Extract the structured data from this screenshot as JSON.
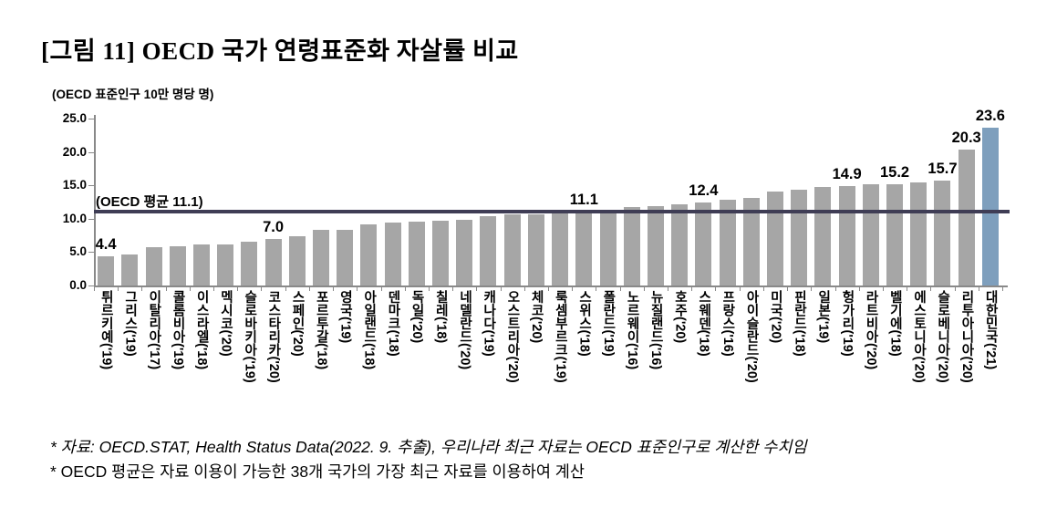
{
  "page": {
    "background": "#ffffff"
  },
  "chart_data": {
    "type": "bar",
    "title": "[그림 11] OECD 국가 연령표준화 자살률 비교",
    "unit_label": "(OECD 표준인구 10만 명당 명)",
    "xlabel": "",
    "ylabel": "",
    "ylim": [
      0,
      25
    ],
    "ytick_labels": [
      "0.0",
      "5.0",
      "10.0",
      "15.0",
      "20.0",
      "25.0"
    ],
    "yticks": [
      0,
      5,
      10,
      15,
      20,
      25
    ],
    "grid": false,
    "legend": "none",
    "bar_color": "#a6a6a6",
    "highlight_color": "#7e9fbd",
    "highlight_category": "대한민국('21)",
    "average_line": {
      "value": 11.1,
      "label": "(OECD 평균 11.1)",
      "color": "#3f3d55"
    },
    "categories": [
      "튀르키예('19)",
      "그리스('19)",
      "이탈리아('17)",
      "콜롬비아('19)",
      "이스라엘('18)",
      "멕시코('20)",
      "슬로바키아('19)",
      "코스타리카('20)",
      "스페인('20)",
      "포르투갈('18)",
      "영국('19)",
      "아일랜드('18)",
      "덴마크('18)",
      "독일('20)",
      "칠레('18)",
      "네델란드('20)",
      "캐나다('19)",
      "오스트리아('20)",
      "체코('20)",
      "룩셈부르크('19)",
      "스위스('18)",
      "폴란드('19)",
      "노르웨이('16)",
      "뉴질랜드('16)",
      "호주('20)",
      "스웨덴('18)",
      "프랑스('16)",
      "아이슬란드('20)",
      "미국('20)",
      "핀란드('18)",
      "일본('19)",
      "헝가리('19)",
      "라트비아('20)",
      "벨기에('18)",
      "에스토니아('20)",
      "슬로베니아('20)",
      "리투아니아('20)",
      "대한민국('21)"
    ],
    "values": [
      4.4,
      4.6,
      5.8,
      5.9,
      6.1,
      6.2,
      6.5,
      7.0,
      7.4,
      8.3,
      8.4,
      9.2,
      9.4,
      9.5,
      9.7,
      9.9,
      10.4,
      10.6,
      10.7,
      10.9,
      11.1,
      11.4,
      11.7,
      11.9,
      12.2,
      12.4,
      12.9,
      13.1,
      14.1,
      14.4,
      14.7,
      14.9,
      15.1,
      15.2,
      15.4,
      15.7,
      20.3,
      23.6
    ],
    "data_labels": [
      "4.4",
      "",
      "",
      "",
      "",
      "",
      "",
      "7.0",
      "",
      "",
      "",
      "",
      "",
      "",
      "",
      "",
      "",
      "",
      "",
      "",
      "11.1",
      "",
      "",
      "",
      "",
      "12.4",
      "",
      "",
      "",
      "",
      "",
      "14.9",
      "",
      "15.2",
      "",
      "15.7",
      "20.3",
      "23.6"
    ]
  },
  "footer": {
    "line1": "* 자료: OECD.STAT, Health Status Data(2022. 9. 추출), 우리나라 최근 자료는 OECD 표준인구로 계산한 수치임",
    "line2": "* OECD 평균은 자료 이용이 가능한 38개 국가의 가장 최근 자료를 이용하여 계산"
  }
}
